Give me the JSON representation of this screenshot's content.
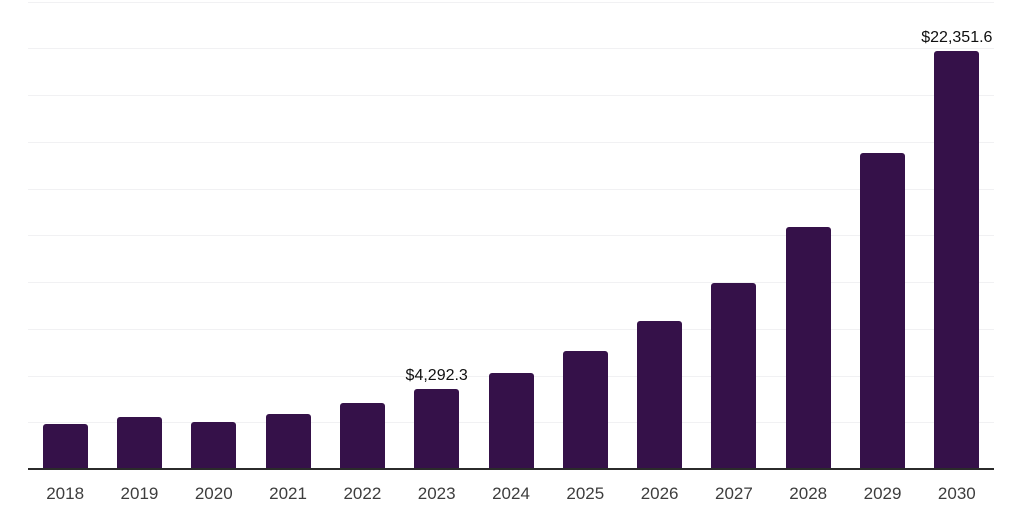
{
  "chart_data": {
    "type": "bar",
    "title": "",
    "xlabel": "",
    "ylabel": "",
    "categories": [
      "2018",
      "2019",
      "2020",
      "2021",
      "2022",
      "2023",
      "2024",
      "2025",
      "2026",
      "2027",
      "2028",
      "2029",
      "2030"
    ],
    "values": [
      2380,
      2755,
      2490,
      2915,
      3555,
      4292.3,
      5110,
      6300,
      7900,
      9935,
      12920,
      16885,
      22351.6
    ],
    "data_labels": [
      "",
      "",
      "",
      "",
      "",
      "$4,292.3",
      "",
      "",
      "",
      "",
      "",
      "",
      "$22,351.6"
    ],
    "ylim": [
      0,
      25000
    ],
    "gridline_interval": 2500,
    "grid": "horizontal-only",
    "legend": "none",
    "y_axis_ticks_visible": false,
    "colors": {
      "bar": "#351149",
      "axis_line": "#2b2b2b",
      "gridline": "#f1f1f3",
      "tick_label": "#3d3d3d",
      "data_label": "#101010",
      "background": "#ffffff"
    }
  }
}
